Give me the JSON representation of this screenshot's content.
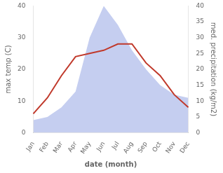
{
  "chart_data": {
    "type": "line",
    "xlabel": "date (month)",
    "ylabel": "max temp (C)",
    "y2label": "med. precipitation (kg/m2)",
    "categories": [
      "Jan",
      "Feb",
      "Mar",
      "Apr",
      "May",
      "Jun",
      "Jul",
      "Aug",
      "Sep",
      "Oct",
      "Nov",
      "Dec"
    ],
    "series": [
      {
        "type": "area",
        "color": "#c5cef0",
        "axis": "y2",
        "values": [
          4,
          5,
          8,
          13,
          30,
          40,
          34,
          26,
          20,
          15,
          12,
          11
        ]
      },
      {
        "type": "line",
        "color": "#c0392b",
        "values": [
          6,
          11,
          18,
          24,
          25,
          26,
          28,
          28,
          22,
          18,
          12,
          8
        ]
      }
    ],
    "ylim": [
      0,
      40
    ],
    "yticks": [
      0,
      10,
      20,
      30,
      40
    ],
    "y2lim": [
      0,
      40
    ],
    "y2ticks": [
      0,
      5,
      10,
      15,
      20,
      25,
      30,
      35,
      40
    ],
    "grid": false
  }
}
